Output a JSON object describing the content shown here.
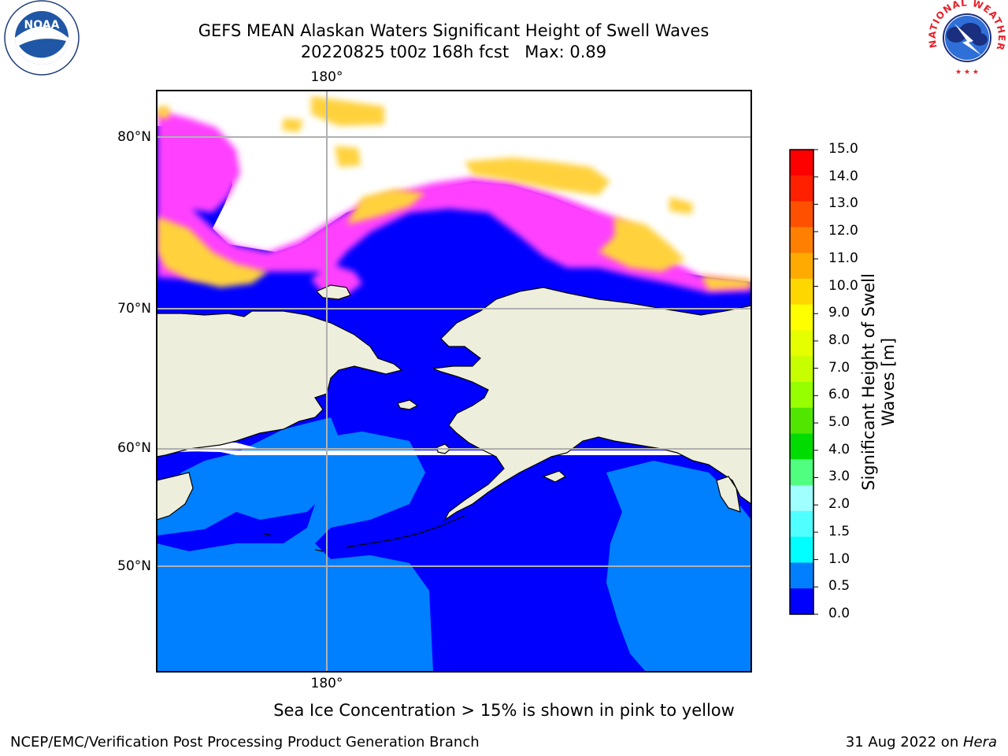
{
  "title_line1": "GEFS MEAN Alaskan Waters Significant Height of Swell Waves",
  "title_line2": "20220825 t00z 168h fcst   Max: 0.89",
  "map": {
    "lat_labels": [
      "80°N",
      "70°N",
      "60°N",
      "50°N"
    ],
    "lon_label_top": "180°",
    "lon_label_bottom": "180°",
    "colors": {
      "swell_lt_0_5": "#0000ff",
      "swell_0_5_1_0": "#0080ff",
      "land": "#eeeedc",
      "sea_ice_low": "#ff40ff",
      "sea_ice_high": "#ffd23c",
      "grid": "#b0b0b0"
    }
  },
  "colorbar": {
    "label": "Significant Height of Swell Waves [m]",
    "ticks": [
      "15.0",
      "14.0",
      "13.0",
      "12.0",
      "11.0",
      "10.0",
      "9.0",
      "8.0",
      "7.0",
      "6.0",
      "5.0",
      "4.0",
      "3.0",
      "2.0",
      "1.5",
      "1.0",
      "0.5",
      "0.0"
    ],
    "colors_top_to_bottom": [
      "#ff0000",
      "#ff2000",
      "#ff5000",
      "#ff8000",
      "#ffaa00",
      "#ffd700",
      "#ffff00",
      "#e6ff00",
      "#c8ff00",
      "#96ff00",
      "#50e600",
      "#00dc00",
      "#50ff80",
      "#a0ffff",
      "#50ffff",
      "#00ffff",
      "#0080ff",
      "#0000ff"
    ]
  },
  "note": "Sea Ice Concentration > 15% is shown in pink to yellow",
  "footer_left": "NCEP/EMC/Verification Post Processing Product Generation Branch",
  "footer_right_date": "31 Aug 2022 on ",
  "footer_right_machine": "Hera",
  "logos": {
    "noaa": "NOAA",
    "nws": "NATIONAL WEATHER SERVICE"
  }
}
